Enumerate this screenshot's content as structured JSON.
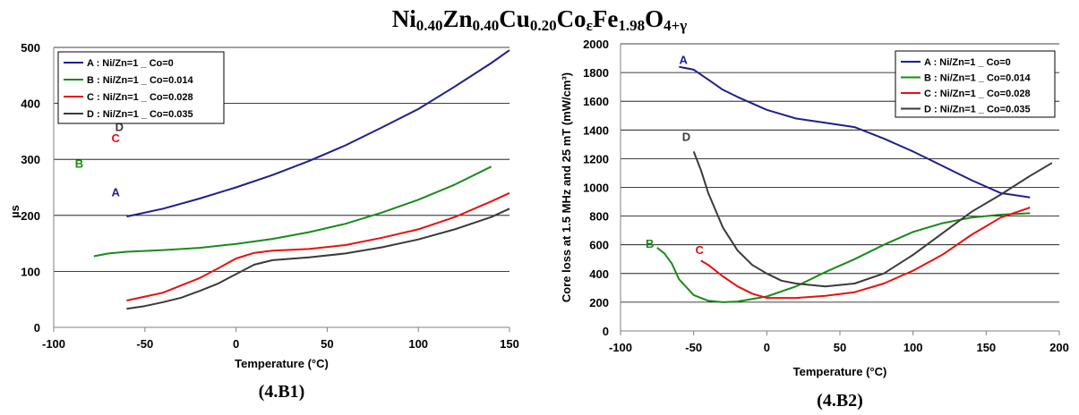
{
  "figure": {
    "title_parts": [
      {
        "text": "Ni",
        "sub": false
      },
      {
        "text": "0.40",
        "sub": true
      },
      {
        "text": "Zn",
        "sub": false
      },
      {
        "text": "0.40",
        "sub": true
      },
      {
        "text": "Cu",
        "sub": false
      },
      {
        "text": "0.20",
        "sub": true
      },
      {
        "text": "Co",
        "sub": false
      },
      {
        "text": "ε",
        "sub": true
      },
      {
        "text": "Fe",
        "sub": false
      },
      {
        "text": "1.98",
        "sub": true
      },
      {
        "text": "O",
        "sub": false
      },
      {
        "text": "4+γ",
        "sub": true
      }
    ]
  },
  "chart_data": [
    {
      "id": "4.B1",
      "type": "line",
      "caption": "(4.B1)",
      "xlabel": "Temperature (°C)",
      "ylabel": "µs",
      "xlim": [
        -100,
        150
      ],
      "ylim": [
        0,
        500
      ],
      "xticks": [
        -100,
        -50,
        0,
        50,
        100,
        150
      ],
      "yticks": [
        0,
        100,
        200,
        300,
        400,
        500
      ],
      "grid": "horizontal",
      "legend_position": "top-left",
      "series": [
        {
          "name": "A : Ni/Zn=1 _ Co=0",
          "label": "A",
          "color": "#1f1f8c",
          "x": [
            -60,
            -40,
            -20,
            0,
            20,
            40,
            60,
            80,
            100,
            120,
            140,
            150
          ],
          "y": [
            198,
            212,
            230,
            250,
            272,
            297,
            325,
            357,
            390,
            430,
            472,
            495
          ]
        },
        {
          "name": "B : Ni/Zn=1 _ Co=0.014",
          "label": "B",
          "color": "#1a8a1a",
          "x": [
            -78,
            -70,
            -60,
            -40,
            -20,
            0,
            20,
            40,
            60,
            80,
            100,
            120,
            140
          ],
          "y": [
            127,
            132,
            135,
            138,
            142,
            149,
            158,
            170,
            185,
            205,
            228,
            255,
            287
          ]
        },
        {
          "name": "C : Ni/Zn=1 _ Co=0.028",
          "label": "C",
          "color": "#e81010",
          "x": [
            -60,
            -50,
            -40,
            -30,
            -20,
            -10,
            0,
            10,
            20,
            40,
            60,
            80,
            100,
            120,
            140,
            150
          ],
          "y": [
            48,
            55,
            62,
            75,
            88,
            105,
            123,
            133,
            137,
            140,
            147,
            160,
            175,
            197,
            225,
            240
          ]
        },
        {
          "name": "D : Ni/Zn=1 _ Co=0.035",
          "label": "D",
          "color": "#3a3a3a",
          "x": [
            -60,
            -50,
            -40,
            -30,
            -20,
            -10,
            0,
            10,
            20,
            40,
            60,
            80,
            100,
            120,
            140,
            150
          ],
          "y": [
            33,
            38,
            45,
            53,
            65,
            78,
            95,
            112,
            120,
            125,
            132,
            143,
            157,
            175,
            197,
            212
          ]
        }
      ]
    },
    {
      "id": "4.B2",
      "type": "line",
      "caption": "(4.B2)",
      "xlabel": "Temperature (°C)",
      "ylabel": "Core loss at 1.5 MHz and 25 mT (mW/cm³)",
      "xlim": [
        -100,
        200
      ],
      "ylim": [
        0,
        2000
      ],
      "xticks": [
        -100,
        -50,
        0,
        50,
        100,
        150,
        200
      ],
      "yticks": [
        0,
        200,
        400,
        600,
        800,
        1000,
        1200,
        1400,
        1600,
        1800,
        2000
      ],
      "grid": "horizontal",
      "legend_position": "top-right",
      "series": [
        {
          "name": "A : Ni/Zn=1 _ Co=0",
          "label": "A",
          "color": "#1f1f8c",
          "x": [
            -60,
            -50,
            -40,
            -30,
            -20,
            0,
            20,
            40,
            60,
            80,
            100,
            120,
            140,
            160,
            180
          ],
          "y": [
            1840,
            1820,
            1750,
            1680,
            1630,
            1540,
            1480,
            1450,
            1420,
            1340,
            1250,
            1150,
            1050,
            960,
            930
          ]
        },
        {
          "name": "B : Ni/Zn=1 _ Co=0.014",
          "label": "B",
          "color": "#1a8a1a",
          "x": [
            -75,
            -70,
            -65,
            -60,
            -50,
            -40,
            -30,
            -20,
            0,
            20,
            40,
            60,
            80,
            100,
            120,
            140,
            160,
            180
          ],
          "y": [
            580,
            540,
            470,
            360,
            250,
            210,
            200,
            205,
            240,
            310,
            410,
            500,
            600,
            690,
            750,
            790,
            810,
            820
          ]
        },
        {
          "name": "C : Ni/Zn=1 _ Co=0.028",
          "label": "C",
          "color": "#e81010",
          "x": [
            -45,
            -40,
            -30,
            -20,
            -10,
            0,
            20,
            40,
            60,
            80,
            100,
            120,
            140,
            160,
            180
          ],
          "y": [
            490,
            460,
            380,
            310,
            260,
            230,
            230,
            245,
            270,
            330,
            420,
            530,
            670,
            790,
            860
          ]
        },
        {
          "name": "D : Ni/Zn=1 _ Co=0.035",
          "label": "D",
          "color": "#3a3a3a",
          "x": [
            -50,
            -45,
            -40,
            -30,
            -20,
            -10,
            0,
            10,
            20,
            40,
            60,
            80,
            100,
            120,
            140,
            160,
            180,
            195
          ],
          "y": [
            1250,
            1120,
            960,
            720,
            560,
            460,
            400,
            350,
            330,
            310,
            330,
            400,
            530,
            680,
            830,
            950,
            1080,
            1170
          ]
        }
      ]
    }
  ]
}
